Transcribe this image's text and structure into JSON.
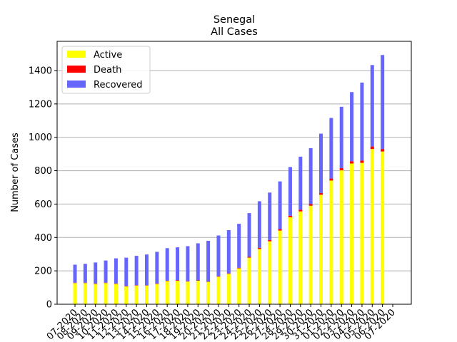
{
  "chart_data": {
    "type": "bar",
    "stacked": true,
    "title": "Senegal",
    "subtitle": "All Cases",
    "xlabel": "",
    "ylabel": "Number of Cases",
    "ylim": [
      0,
      1575
    ],
    "yticks": [
      0,
      200,
      400,
      600,
      800,
      1000,
      1200,
      1400
    ],
    "grid": "horizontal",
    "legend_position": "top-left",
    "colors": {
      "Active": "#ffff00",
      "Death": "#ff0000",
      "Recovered": "#6666ff"
    },
    "categories": [
      "07-2020",
      "08-2020",
      "09-2020",
      "10-2020",
      "11-2020",
      "12-2020",
      "13-2020",
      "14-2020",
      "15-2020",
      "16-2020",
      "17-2020",
      "18-2020",
      "19-2020",
      "20-2020",
      "21-2020",
      "22-2020",
      "23-2020",
      "24-2020",
      "25-2020",
      "26-2020",
      "27-2020",
      "28-2020",
      "29-2020",
      "30-2020",
      "31-2020",
      "01-2020",
      "02-2020",
      "03-2020",
      "04-2020",
      "05-2020",
      "06-2020",
      "07-2020"
    ],
    "series": [
      {
        "name": "Active",
        "values": [
          127,
          127,
          122,
          127,
          122,
          107,
          112,
          112,
          122,
          139,
          141,
          136,
          141,
          134,
          165,
          182,
          215,
          279,
          331,
          377,
          441,
          521,
          556,
          590,
          656,
          741,
          802,
          843,
          847,
          930,
          915,
          0
        ]
      },
      {
        "name": "Death",
        "values": [
          2,
          2,
          2,
          2,
          2,
          2,
          2,
          2,
          2,
          2,
          2,
          2,
          2,
          2,
          3,
          3,
          4,
          5,
          7,
          8,
          9,
          9,
          10,
          10,
          11,
          12,
          13,
          14,
          14,
          15,
          15,
          0
        ]
      },
      {
        "name": "Recovered",
        "values": [
          108,
          113,
          126,
          133,
          151,
          170,
          176,
          184,
          190,
          195,
          198,
          210,
          222,
          244,
          244,
          259,
          263,
          262,
          279,
          284,
          286,
          292,
          318,
          335,
          355,
          363,
          368,
          414,
          467,
          488,
          563,
          0
        ]
      }
    ]
  }
}
